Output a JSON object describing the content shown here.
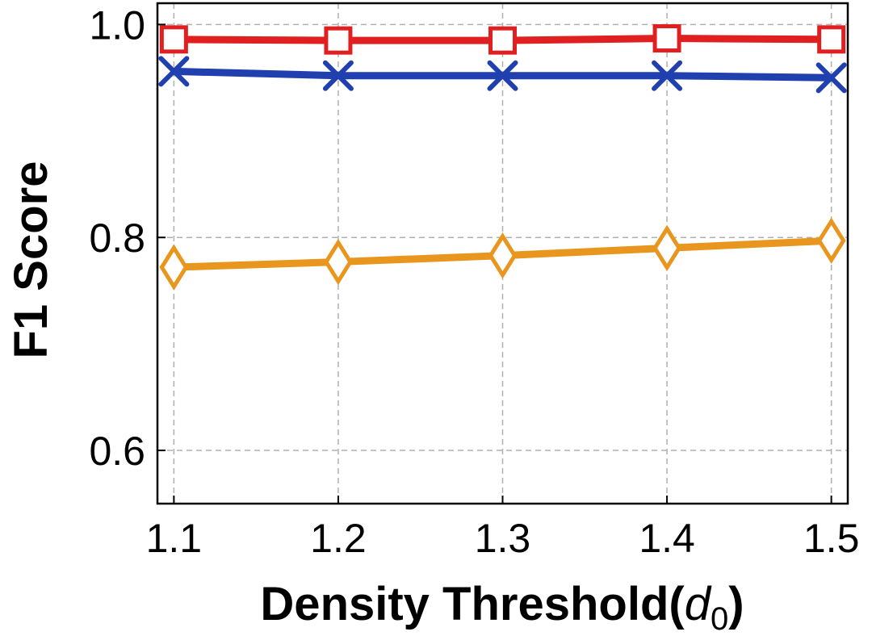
{
  "chart_data": {
    "type": "line",
    "x": [
      1.1,
      1.2,
      1.3,
      1.4,
      1.5
    ],
    "x_tick_labels": [
      "1.1",
      "1.2",
      "1.3",
      "1.4",
      "1.5"
    ],
    "y_ticks": [
      0.6,
      0.8,
      1.0
    ],
    "y_tick_labels": [
      "0.6",
      "0.8",
      "1.0"
    ],
    "xlim": [
      1.09,
      1.51
    ],
    "ylim": [
      0.55,
      1.02
    ],
    "xlabel_text": "Density Threshold(",
    "xlabel_var": "d",
    "xlabel_sub": "0",
    "xlabel_close": ")",
    "ylabel": "F1 Score",
    "grid": true,
    "series": [
      {
        "color": "#e02020",
        "marker": "square",
        "values": [
          0.986,
          0.985,
          0.985,
          0.987,
          0.986
        ]
      },
      {
        "color": "#2040b0",
        "marker": "x",
        "values": [
          0.956,
          0.952,
          0.952,
          0.952,
          0.95
        ]
      },
      {
        "color": "#e8961e",
        "marker": "diamond",
        "values": [
          0.772,
          0.777,
          0.783,
          0.79,
          0.797
        ]
      }
    ]
  }
}
